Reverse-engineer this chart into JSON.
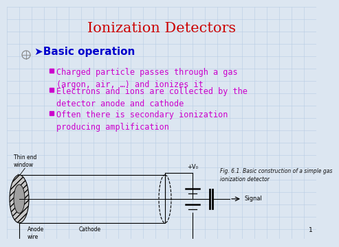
{
  "title": "Ionization Detectors",
  "title_color": "#CC0000",
  "title_fontsize": 15,
  "bg_color": "#dce6f1",
  "section_header": "➤Basic operation",
  "section_color": "#0000CC",
  "section_fontsize": 11,
  "bullet_color": "#CC00CC",
  "bullet_fontsize": 8.5,
  "bullets": [
    "Charged particle passes through a gas\n(argon, air, …) and ionizes it",
    "Electrons and ions are collected by the\ndetector anode and cathode",
    "Often there is secondary ionization\nproducing amplification"
  ],
  "bullet_marker_color": "#CC00CC",
  "fig_caption": "Fig. 6.1. Basic construction of a simple gas\nionization detector",
  "fig_caption_color": "#111111",
  "fig_caption_fontsize": 5.5,
  "diagram_labels": {
    "thin_end_window": "Thin end\nwindow",
    "anode_wire": "Anode\nwire",
    "cathode": "Cathode",
    "vp": "+V₀",
    "signal": "Signal"
  },
  "grid_color": "#b8cce4",
  "page_number": "1"
}
